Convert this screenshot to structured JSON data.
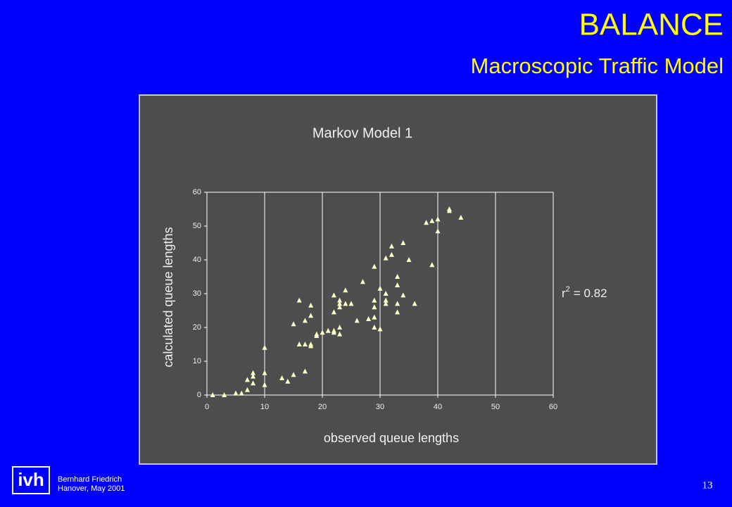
{
  "slide": {
    "title": "BALANCE",
    "subtitle": "Macroscopic Traffic Model",
    "logo": "ivh",
    "author": "Bernhard Friedrich",
    "place_date": "Hanover, May 2001",
    "page": "13"
  },
  "chart_data": {
    "type": "scatter",
    "title": "Markov Model 1",
    "x_label": "observed queue lengths",
    "y_label": "calculated queue lengths",
    "annotation": {
      "base": "r",
      "exponent": "2",
      "text": "= 0.82"
    },
    "color": "#ffffcc",
    "grid": "x",
    "xlim": [
      0,
      60
    ],
    "ylim": [
      0,
      60
    ],
    "xticks": [
      0,
      10,
      20,
      30,
      40,
      50,
      60
    ],
    "yticks": [
      0,
      10,
      20,
      30,
      40,
      50,
      60
    ],
    "x": [
      1,
      3,
      5,
      6,
      7,
      7,
      8,
      8,
      8,
      10,
      10,
      10,
      13,
      14,
      15,
      15,
      16,
      16,
      17,
      17,
      17,
      18,
      18,
      18,
      18,
      19,
      19,
      20,
      21,
      22,
      22,
      22,
      22,
      23,
      23,
      23,
      23,
      23,
      24,
      24,
      25,
      26,
      27,
      28,
      29,
      29,
      29,
      29,
      29,
      30,
      30,
      31,
      31,
      31,
      31,
      32,
      32,
      33,
      33,
      33,
      33,
      34,
      34,
      35,
      36,
      38,
      39,
      39,
      40,
      40,
      42,
      42,
      44
    ],
    "y": [
      0,
      0,
      0.5,
      0.5,
      1.5,
      4.5,
      3.5,
      5.5,
      6.5,
      3,
      6.5,
      14,
      5,
      4,
      6,
      21,
      15,
      28,
      7,
      15,
      22,
      14.5,
      15,
      23.5,
      26.5,
      17.5,
      18,
      18.5,
      19,
      18.5,
      19,
      24.5,
      29.5,
      18,
      20,
      26,
      27,
      28,
      27,
      31,
      27,
      22,
      33.5,
      22.5,
      20,
      23,
      26,
      28,
      38,
      19.5,
      31.5,
      27,
      28,
      30,
      40.5,
      41.5,
      44,
      24.5,
      27,
      32.5,
      35,
      29.5,
      45,
      40,
      27,
      51,
      38.5,
      51.5,
      48.5,
      52,
      54.5,
      55,
      52.5
    ]
  }
}
